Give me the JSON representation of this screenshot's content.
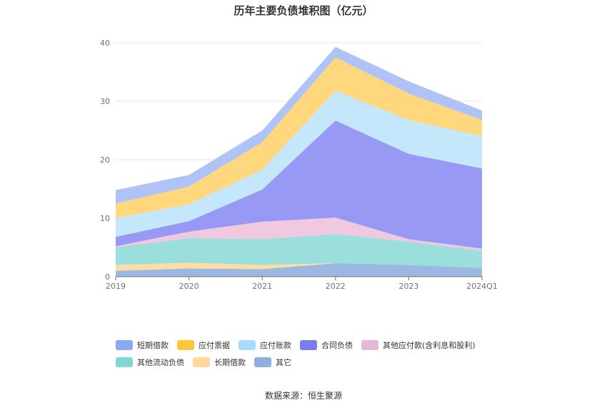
{
  "chart_data": {
    "type": "area",
    "title": "历年主要负债堆积图（亿元）",
    "categories": [
      "2019",
      "2020",
      "2021",
      "2022",
      "2023",
      "2024Q1"
    ],
    "ylim": [
      0,
      40
    ],
    "yticks": [
      0,
      10,
      20,
      30,
      40
    ],
    "grid": true,
    "legend_position": "bottom",
    "stacked": true,
    "series": [
      {
        "name": "其它",
        "color": "#8fb0de",
        "values": [
          1.0,
          1.4,
          1.3,
          2.3,
          2.0,
          1.5
        ]
      },
      {
        "name": "长期借款",
        "color": "#ffd89a",
        "values": [
          1.0,
          1.0,
          0.7,
          0.0,
          0.0,
          0.0
        ]
      },
      {
        "name": "其他流动负债",
        "color": "#8fdcd8",
        "values": [
          3.0,
          4.2,
          4.4,
          5.0,
          4.0,
          2.9
        ]
      },
      {
        "name": "其他应付款(含利息和股利)",
        "color": "#eec2dc",
        "values": [
          0.2,
          1.1,
          3.0,
          2.8,
          0.4,
          0.4
        ]
      },
      {
        "name": "合同负债",
        "color": "#8d8ef4",
        "values": [
          1.6,
          1.8,
          5.5,
          16.6,
          14.6,
          13.7
        ]
      },
      {
        "name": "应付账款",
        "color": "#bfe4fb",
        "values": [
          3.2,
          2.9,
          3.4,
          5.1,
          5.8,
          5.5
        ]
      },
      {
        "name": "应付票据",
        "color": "#ffd36e",
        "values": [
          2.5,
          3.0,
          4.7,
          5.7,
          4.5,
          2.8
        ]
      },
      {
        "name": "短期借款",
        "color": "#a6bdf6",
        "values": [
          2.3,
          2.0,
          2.0,
          1.8,
          2.1,
          1.6
        ]
      }
    ],
    "legend_rows": [
      [
        {
          "name": "短期借款",
          "color": "#8aa8f4"
        },
        {
          "name": "应付票据",
          "color": "#ffc53d"
        },
        {
          "name": "应付账款",
          "color": "#a9dcfb"
        },
        {
          "name": "合同负债",
          "color": "#7b7cf0"
        },
        {
          "name": "其他应付款(含利息和股利)",
          "color": "#e7b6d8"
        }
      ],
      [
        {
          "name": "其他流动负债",
          "color": "#80d7d3"
        },
        {
          "name": "长期借款",
          "color": "#ffd89a"
        },
        {
          "name": "其它",
          "color": "#8fb0de"
        }
      ]
    ]
  },
  "source": "数据来源：恒生聚源"
}
